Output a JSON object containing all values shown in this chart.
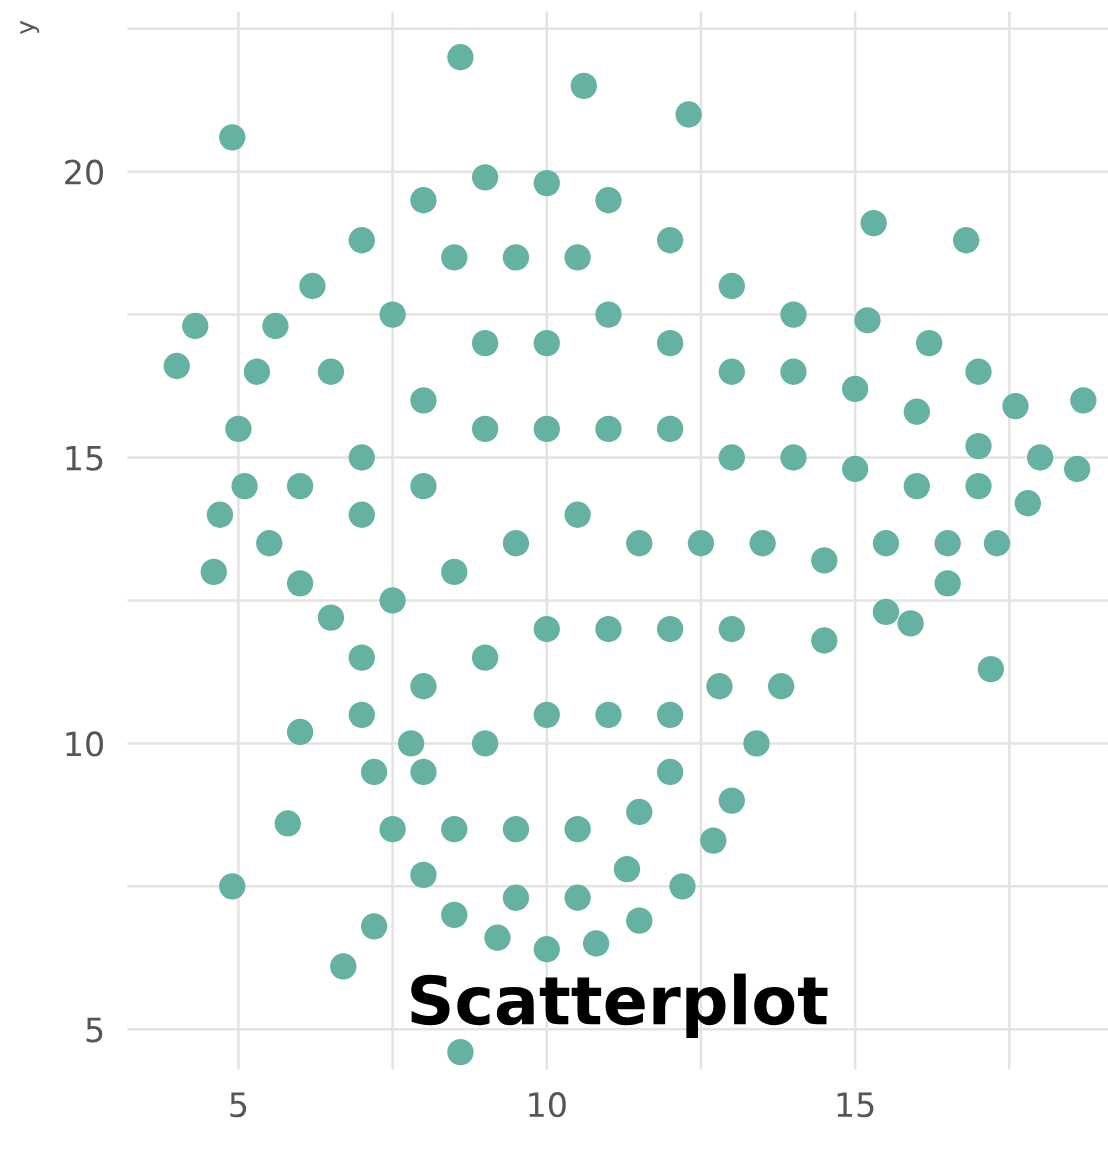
{
  "chart_data": {
    "type": "scatter",
    "title": "Scatterplot",
    "ylabel": "y",
    "xlim": [
      3.2,
      19.1
    ],
    "ylim": [
      4.3,
      22.8
    ],
    "xticks": [
      5,
      {
        "value": 7.5,
        "label": null
      },
      10,
      {
        "value": 12.5,
        "label": null
      },
      15,
      {
        "value": 17.5,
        "label": null
      }
    ],
    "yticks": [
      5,
      {
        "value": 7.5,
        "label": null
      },
      10,
      {
        "value": 12.5,
        "label": null
      },
      15,
      {
        "value": 17.5,
        "label": null
      },
      20,
      {
        "value": 22.5,
        "label": null
      }
    ],
    "grid": true,
    "marker": "circle",
    "series": [
      {
        "color": "#66b2a2",
        "x": [
          5.3,
          5.0,
          5.1,
          5.5,
          6.0,
          6.5,
          7.0,
          7.0,
          7.2,
          7.5,
          8.0,
          8.5,
          9.2,
          10,
          10.8,
          11.5,
          12.2,
          12.7,
          13.0,
          13.4,
          13.8,
          14.5,
          15.5,
          16.5,
          17.3,
          17.8,
          18.0,
          17.6,
          17.0,
          16.2,
          15.2,
          14.0,
          13.0,
          12.0,
          11.0,
          10.0,
          9.0,
          8.0,
          7.0,
          6.2,
          5.6,
          4.0,
          4.3,
          4.9,
          8.6,
          10.6,
          12.3,
          4.7,
          4.6,
          4.9,
          6.0,
          5.8,
          6.7,
          8.6,
          15.9,
          17.2,
          18.6,
          18.7,
          16.8,
          15.3,
          7.2,
          6.5,
          7.5,
          8.5,
          9.5,
          10.5,
          7,
          8,
          9,
          10,
          11,
          12,
          13,
          14,
          15,
          16,
          17,
          6,
          7,
          8,
          9,
          10,
          11,
          12,
          13,
          14,
          15,
          16,
          17,
          7.5,
          8.5,
          9.5,
          10.5,
          11.5,
          12.5,
          13.5,
          14.5,
          15.5,
          16.5,
          8,
          9,
          10,
          11,
          12,
          13,
          8,
          9,
          10,
          11,
          12,
          8.5,
          9.5,
          10.5,
          11.5,
          12,
          9.5,
          10.5,
          11.3,
          7.8,
          12.8
        ],
        "values": [
          16.5,
          15.5,
          14.5,
          13.5,
          12.8,
          12.2,
          11.5,
          10.5,
          9.5,
          8.5,
          7.7,
          7.0,
          6.6,
          6.4,
          6.5,
          6.9,
          7.5,
          8.3,
          9.0,
          10.0,
          11.0,
          11.8,
          12.3,
          12.8,
          13.5,
          14.2,
          15.0,
          15.9,
          16.5,
          17.0,
          17.4,
          17.5,
          18.0,
          18.8,
          19.5,
          19.8,
          19.9,
          19.5,
          18.8,
          18.0,
          17.3,
          16.6,
          17.3,
          20.6,
          22.0,
          21.5,
          21.0,
          14.0,
          13.0,
          7.5,
          10.2,
          8.6,
          6.1,
          4.6,
          12.1,
          11.3,
          14.8,
          16.0,
          18.8,
          19.1,
          6.8,
          16.5,
          17.5,
          18.5,
          18.5,
          18.5,
          15,
          16,
          17,
          17,
          17.5,
          17,
          16.5,
          16.5,
          16.2,
          15.8,
          15.2,
          14.5,
          14,
          14.5,
          15.5,
          15.5,
          15.5,
          15.5,
          15,
          15,
          14.8,
          14.5,
          14.5,
          12.5,
          13,
          13.5,
          14,
          13.5,
          13.5,
          13.5,
          13.2,
          13.5,
          13.5,
          11,
          11.5,
          12,
          12,
          12,
          12,
          9.5,
          10,
          10.5,
          10.5,
          10.5,
          8.5,
          8.5,
          8.5,
          8.8,
          9.5,
          7.3,
          7.3,
          7.8,
          10,
          11
        ]
      }
    ]
  }
}
